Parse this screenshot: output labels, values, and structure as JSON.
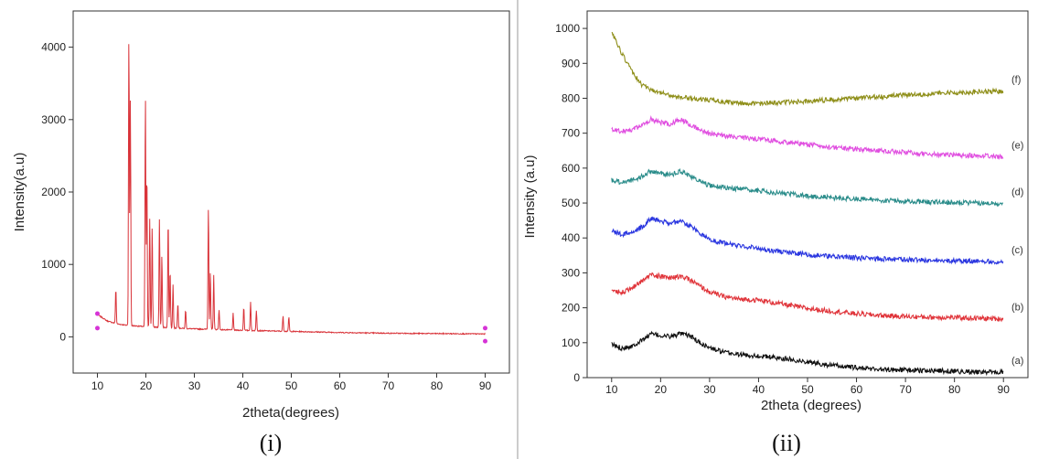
{
  "chart_data": [
    {
      "type": "line",
      "panel_label": "(i)",
      "xlabel": "2theta(degrees)",
      "ylabel": "Intensity(a.u)",
      "xlim": [
        5,
        95
      ],
      "ylim": [
        -500,
        4500
      ],
      "xticks": [
        10,
        20,
        30,
        40,
        50,
        60,
        70,
        80,
        90
      ],
      "yticks": [
        0,
        1000,
        2000,
        3000,
        4000
      ],
      "color": "#d9343a",
      "endpoint_marker_color": "#d633d6",
      "baseline": [
        [
          10,
          310
        ],
        [
          12,
          220
        ],
        [
          14,
          180
        ],
        [
          16,
          160
        ],
        [
          20,
          140
        ],
        [
          30,
          110
        ],
        [
          40,
          90
        ],
        [
          50,
          75
        ],
        [
          60,
          60
        ],
        [
          70,
          50
        ],
        [
          80,
          45
        ],
        [
          90,
          40
        ]
      ],
      "peaks": [
        {
          "x": 13.8,
          "y": 480
        },
        {
          "x": 16.5,
          "y": 4000
        },
        {
          "x": 16.8,
          "y": 3100
        },
        {
          "x": 19.9,
          "y": 3200
        },
        {
          "x": 20.2,
          "y": 2150
        },
        {
          "x": 20.8,
          "y": 1500
        },
        {
          "x": 21.3,
          "y": 1400
        },
        {
          "x": 22.8,
          "y": 1490
        },
        {
          "x": 23.3,
          "y": 1000
        },
        {
          "x": 24.6,
          "y": 1510
        },
        {
          "x": 25.0,
          "y": 800
        },
        {
          "x": 25.6,
          "y": 600
        },
        {
          "x": 26.6,
          "y": 350
        },
        {
          "x": 28.2,
          "y": 260
        },
        {
          "x": 32.9,
          "y": 1700
        },
        {
          "x": 33.3,
          "y": 800
        },
        {
          "x": 34.0,
          "y": 750
        },
        {
          "x": 35.1,
          "y": 280
        },
        {
          "x": 38.0,
          "y": 230
        },
        {
          "x": 40.2,
          "y": 320
        },
        {
          "x": 41.6,
          "y": 400
        },
        {
          "x": 42.8,
          "y": 280
        },
        {
          "x": 48.3,
          "y": 220
        },
        {
          "x": 49.5,
          "y": 200
        }
      ]
    },
    {
      "type": "line",
      "panel_label": "(ii)",
      "xlabel": "2theta (degrees)",
      "ylabel": "Intensity (a.u)",
      "xlim": [
        5,
        95
      ],
      "ylim": [
        0,
        1050
      ],
      "xticks": [
        10,
        20,
        30,
        40,
        50,
        60,
        70,
        80,
        90
      ],
      "yticks": [
        0,
        100,
        200,
        300,
        400,
        500,
        600,
        700,
        800,
        900,
        1000
      ],
      "x": [
        10,
        12,
        14,
        16,
        18,
        20,
        22,
        24,
        26,
        28,
        30,
        33,
        36,
        40,
        45,
        50,
        55,
        60,
        65,
        70,
        75,
        80,
        85,
        90
      ],
      "series": [
        {
          "name": "(a)",
          "color": "#111111",
          "values": [
            95,
            85,
            90,
            105,
            125,
            120,
            118,
            125,
            120,
            100,
            85,
            72,
            66,
            62,
            55,
            45,
            35,
            28,
            24,
            22,
            20,
            18,
            16,
            15
          ]
        },
        {
          "name": "(b)",
          "color": "#e0343a",
          "values": [
            250,
            245,
            255,
            275,
            295,
            290,
            285,
            290,
            280,
            262,
            245,
            232,
            225,
            222,
            210,
            198,
            190,
            183,
            178,
            175,
            173,
            172,
            170,
            168
          ]
        },
        {
          "name": "(c)",
          "color": "#2b37e0",
          "values": [
            420,
            410,
            415,
            430,
            455,
            448,
            442,
            448,
            435,
            415,
            395,
            385,
            378,
            370,
            360,
            352,
            347,
            343,
            340,
            338,
            336,
            334,
            333,
            332
          ]
        },
        {
          "name": "(d)",
          "color": "#2a8c8a",
          "values": [
            565,
            560,
            565,
            575,
            592,
            585,
            580,
            592,
            578,
            562,
            550,
            545,
            540,
            535,
            528,
            520,
            515,
            512,
            508,
            505,
            503,
            502,
            500,
            498
          ]
        },
        {
          "name": "(e)",
          "color": "#e04ee0",
          "values": [
            710,
            705,
            710,
            720,
            740,
            730,
            725,
            740,
            725,
            710,
            698,
            692,
            688,
            683,
            675,
            668,
            660,
            655,
            650,
            645,
            640,
            638,
            635,
            632
          ]
        },
        {
          "name": "(f)",
          "color": "#8f8f1a",
          "values": [
            990,
            930,
            880,
            840,
            825,
            815,
            808,
            804,
            800,
            798,
            795,
            790,
            786,
            785,
            788,
            792,
            796,
            800,
            805,
            810,
            813,
            816,
            818,
            820
          ]
        }
      ]
    }
  ]
}
